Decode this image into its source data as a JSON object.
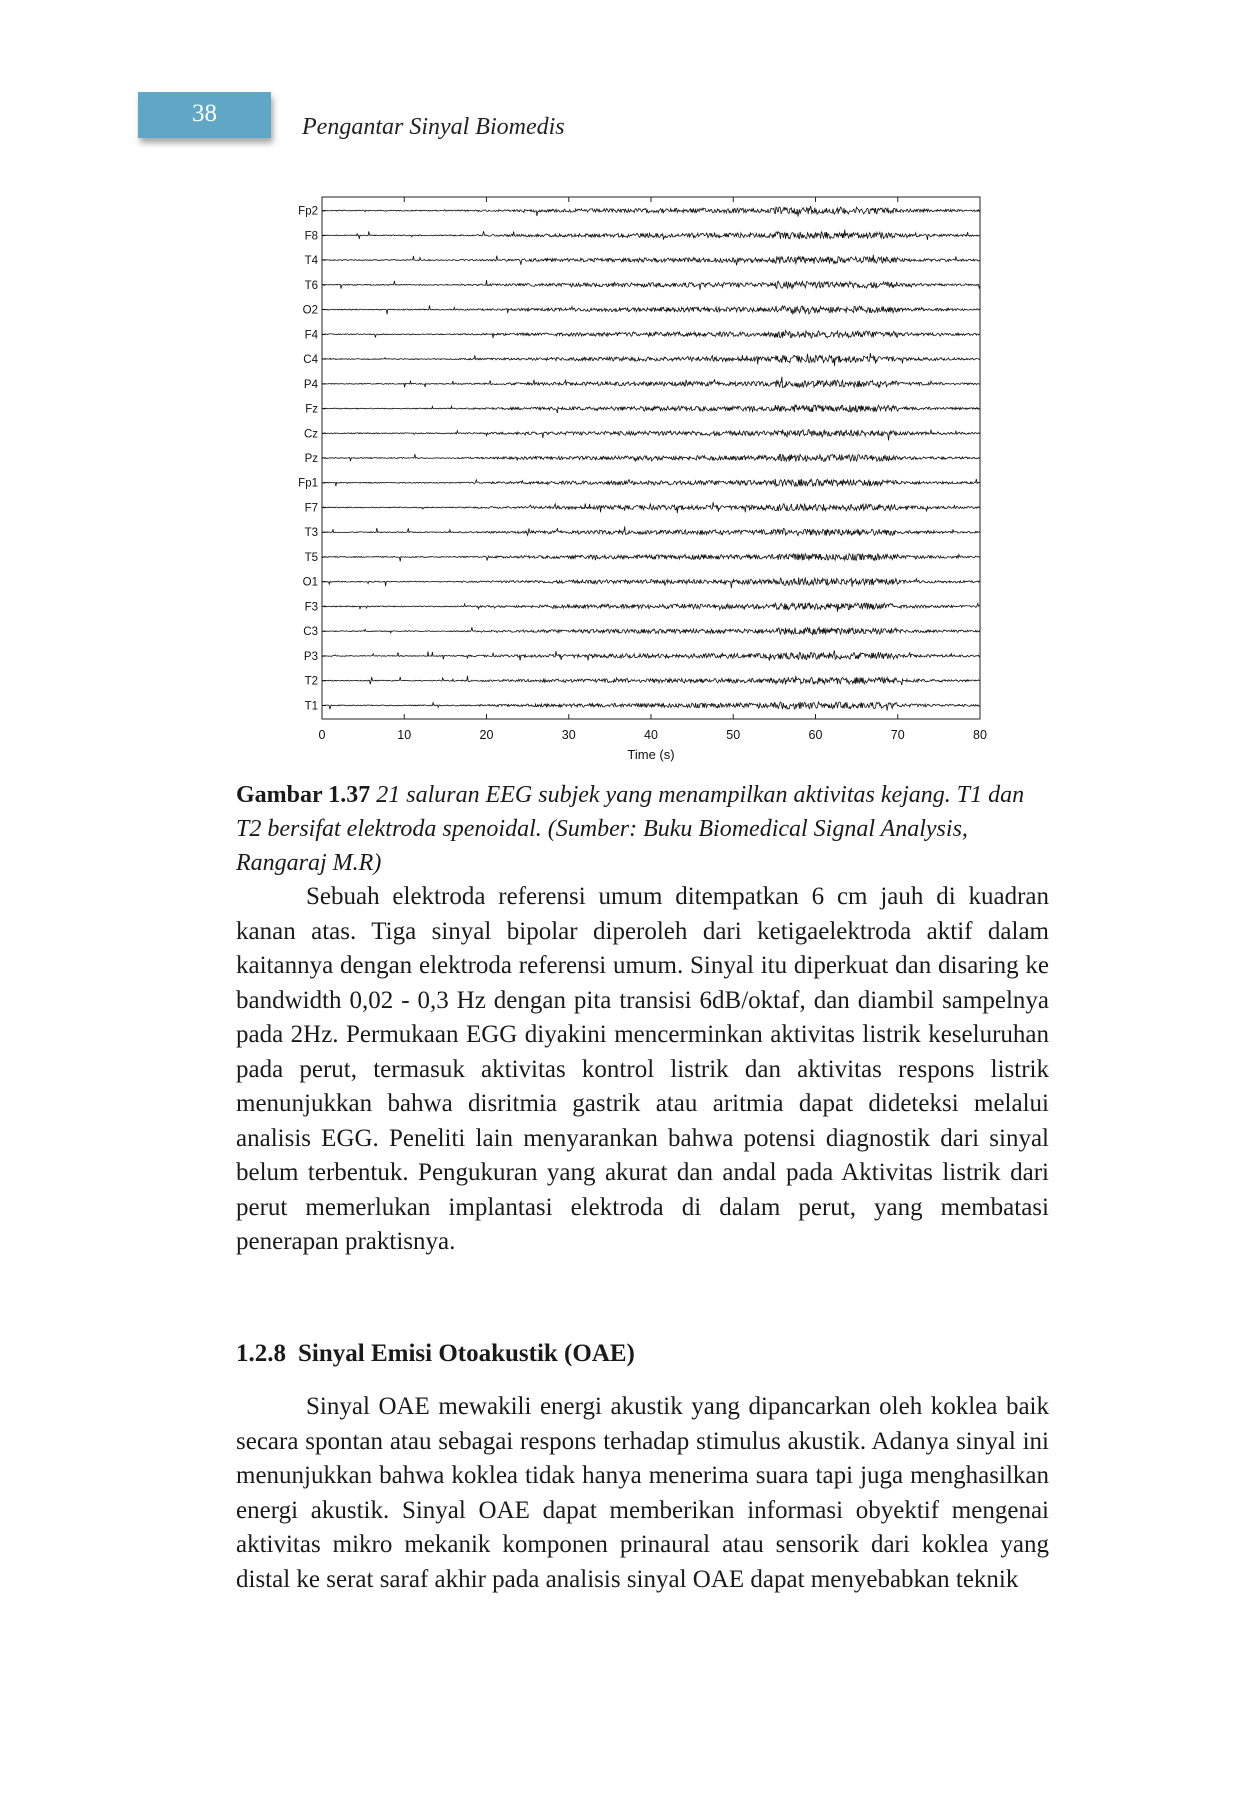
{
  "header": {
    "page_number": "38",
    "running_title": "Pengantar Sinyal Biomedis"
  },
  "figure": {
    "caption_label": "Gambar 1.37",
    "caption_text": "21 saluran EEG subjek yang menampilkan aktivitas kejang. T1 dan T2 bersifat elektroda spenoidal. (Sumber: Buku Biomedical Signal Analysis, Rangaraj M.R)"
  },
  "chart_data": {
    "type": "line",
    "title": "",
    "xlabel": "Time (s)",
    "ylabel": "",
    "xlim": [
      0,
      80
    ],
    "x_ticks": [
      "0",
      "10",
      "20",
      "30",
      "40",
      "50",
      "60",
      "70",
      "80"
    ],
    "channels": [
      "Fp2",
      "F8",
      "T4",
      "T6",
      "O2",
      "F4",
      "C4",
      "P4",
      "Fz",
      "Cz",
      "Pz",
      "Fp1",
      "F7",
      "T3",
      "T5",
      "O1",
      "F3",
      "C3",
      "P3",
      "T2",
      "T1"
    ],
    "grid": false,
    "legend": "none"
  },
  "body": {
    "paragraph_1": "Sebuah elektroda referensi umum ditempatkan 6 cm jauh di kuadran kanan atas. Tiga sinyal bipolar diperoleh dari ketigaelektroda aktif dalam kaitannya dengan elektroda referensi umum. Sinyal itu diperkuat dan disaring ke bandwidth 0,02 - 0,3 Hz dengan pita transisi 6dB/oktaf, dan diambil sampelnya pada 2Hz. Permukaan EGG diyakini mencerminkan aktivitas listrik keseluruhan pada perut, termasuk aktivitas kontrol listrik dan aktivitas respons listrik menunjukkan bahwa disritmia gastrik atau aritmia dapat dideteksi melalui analisis  EGG. Peneliti lain menyarankan bahwa potensi diagnostik dari sinyal belum terbentuk. Pengukuran yang akurat dan andal pada Aktivitas listrik dari perut memerlukan implantasi elektroda di dalam perut, yang membatasi penerapan praktisnya.",
    "section_number": "1.2.8",
    "section_title": "Sinyal Emisi Otoakustik (OAE)",
    "paragraph_2": "Sinyal OAE mewakili energi akustik yang dipancarkan oleh koklea baik secara spontan atau sebagai respons terhadap stimulus akustik. Adanya sinyal ini menunjukkan bahwa koklea tidak hanya menerima suara tapi juga menghasilkan energi akustik. Sinyal OAE dapat memberikan informasi obyektif mengenai aktivitas mikro mekanik komponen prinaural atau sensorik dari koklea yang distal ke serat saraf akhir pada analisis sinyal OAE dapat menyebabkan teknik"
  }
}
